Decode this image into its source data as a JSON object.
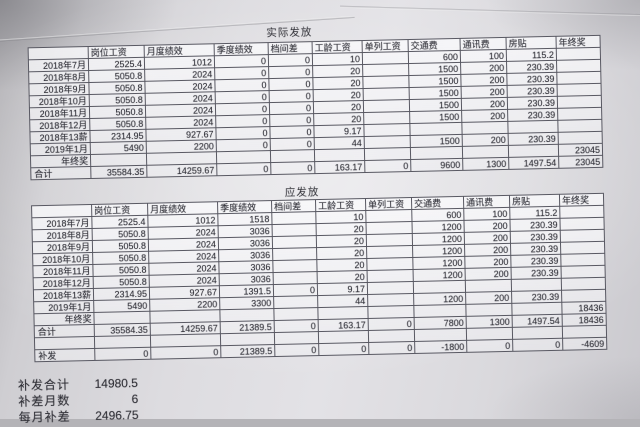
{
  "colors": {
    "paper": "#e0dfe3",
    "ink": "#303038",
    "table_line": "#585862"
  },
  "tables": [
    {
      "title": "实际发放",
      "columns": [
        "",
        "岗位工资",
        "月度绩效",
        "季度绩效",
        "档间差",
        "工龄工资",
        "单列工资",
        "交通费",
        "通讯费",
        "房贴",
        "年终奖"
      ],
      "rows": [
        {
          "label": "2018年7月",
          "values": [
            "2525.4",
            "1012",
            "0",
            "0",
            "10",
            "",
            "600",
            "100",
            "115.2",
            ""
          ]
        },
        {
          "label": "2018年8月",
          "values": [
            "5050.8",
            "2024",
            "0",
            "0",
            "20",
            "",
            "1500",
            "200",
            "230.39",
            ""
          ]
        },
        {
          "label": "2018年9月",
          "values": [
            "5050.8",
            "2024",
            "0",
            "0",
            "20",
            "",
            "1500",
            "200",
            "230.39",
            ""
          ]
        },
        {
          "label": "2018年10月",
          "values": [
            "5050.8",
            "2024",
            "0",
            "0",
            "20",
            "",
            "1500",
            "200",
            "230.39",
            ""
          ]
        },
        {
          "label": "2018年11月",
          "values": [
            "5050.8",
            "2024",
            "0",
            "0",
            "20",
            "",
            "1500",
            "200",
            "230.39",
            ""
          ]
        },
        {
          "label": "2018年12月",
          "values": [
            "5050.8",
            "2024",
            "0",
            "0",
            "20",
            "",
            "1500",
            "200",
            "230.39",
            ""
          ]
        },
        {
          "label": "2018年13薪",
          "values": [
            "2314.95",
            "927.67",
            "0",
            "0",
            "9.17",
            "",
            "",
            "",
            "",
            ""
          ]
        },
        {
          "label": "2019年1月",
          "values": [
            "5490",
            "2200",
            "0",
            "0",
            "44",
            "",
            "1500",
            "200",
            "230.39",
            ""
          ]
        },
        {
          "label": "年终奖",
          "values": [
            "",
            "",
            "",
            "",
            "",
            "",
            "",
            "",
            "",
            "23045"
          ]
        },
        {
          "label": "合计",
          "align": "left",
          "values": [
            "35584.35",
            "14259.67",
            "0",
            "0",
            "163.17",
            "0",
            "9600",
            "1300",
            "1497.54",
            "23045"
          ]
        }
      ]
    },
    {
      "title": "应发放",
      "columns": [
        "",
        "岗位工资",
        "月度绩效",
        "季度绩效",
        "档间差",
        "工龄工资",
        "单列工资",
        "交通费",
        "通讯费",
        "房贴",
        "年终奖"
      ],
      "rows": [
        {
          "label": "2018年7月",
          "values": [
            "2525.4",
            "1012",
            "1518",
            "",
            "10",
            "",
            "600",
            "100",
            "115.2",
            ""
          ]
        },
        {
          "label": "2018年8月",
          "values": [
            "5050.8",
            "2024",
            "3036",
            "",
            "20",
            "",
            "1200",
            "200",
            "230.39",
            ""
          ]
        },
        {
          "label": "2018年9月",
          "values": [
            "5050.8",
            "2024",
            "3036",
            "",
            "20",
            "",
            "1200",
            "200",
            "230.39",
            ""
          ]
        },
        {
          "label": "2018年10月",
          "values": [
            "5050.8",
            "2024",
            "3036",
            "",
            "20",
            "",
            "1200",
            "200",
            "230.39",
            ""
          ]
        },
        {
          "label": "2018年11月",
          "values": [
            "5050.8",
            "2024",
            "3036",
            "",
            "20",
            "",
            "1200",
            "200",
            "230.39",
            ""
          ]
        },
        {
          "label": "2018年12月",
          "values": [
            "5050.8",
            "2024",
            "3036",
            "",
            "20",
            "",
            "1200",
            "200",
            "230.39",
            ""
          ]
        },
        {
          "label": "2018年13薪",
          "values": [
            "2314.95",
            "927.67",
            "1391.5",
            "0",
            "9.17",
            "",
            "",
            "",
            "",
            ""
          ]
        },
        {
          "label": "2019年1月",
          "values": [
            "5490",
            "2200",
            "3300",
            "",
            "44",
            "",
            "1200",
            "200",
            "230.39",
            ""
          ]
        },
        {
          "label": "年终奖",
          "values": [
            "",
            "",
            "",
            "",
            "",
            "",
            "",
            "",
            "",
            "18436"
          ]
        },
        {
          "label": "合计",
          "align": "left",
          "values": [
            "35584.35",
            "14259.67",
            "21389.5",
            "0",
            "163.17",
            "0",
            "7800",
            "1300",
            "1497.54",
            "18436"
          ]
        },
        {
          "label": "",
          "values": [
            "",
            "",
            "",
            "",
            "",
            "",
            "",
            "",
            "",
            ""
          ]
        },
        {
          "label": "补发",
          "align": "left",
          "values": [
            "0",
            "0",
            "21389.5",
            "0",
            "0",
            "0",
            "-1800",
            "0",
            "0",
            "-4609"
          ]
        }
      ]
    }
  ],
  "summary": {
    "items": [
      {
        "label": "补发合计",
        "value": "14980.5"
      },
      {
        "label": "补差月数",
        "value": "6"
      },
      {
        "label": "每月补差",
        "value": "2496.75"
      }
    ]
  }
}
